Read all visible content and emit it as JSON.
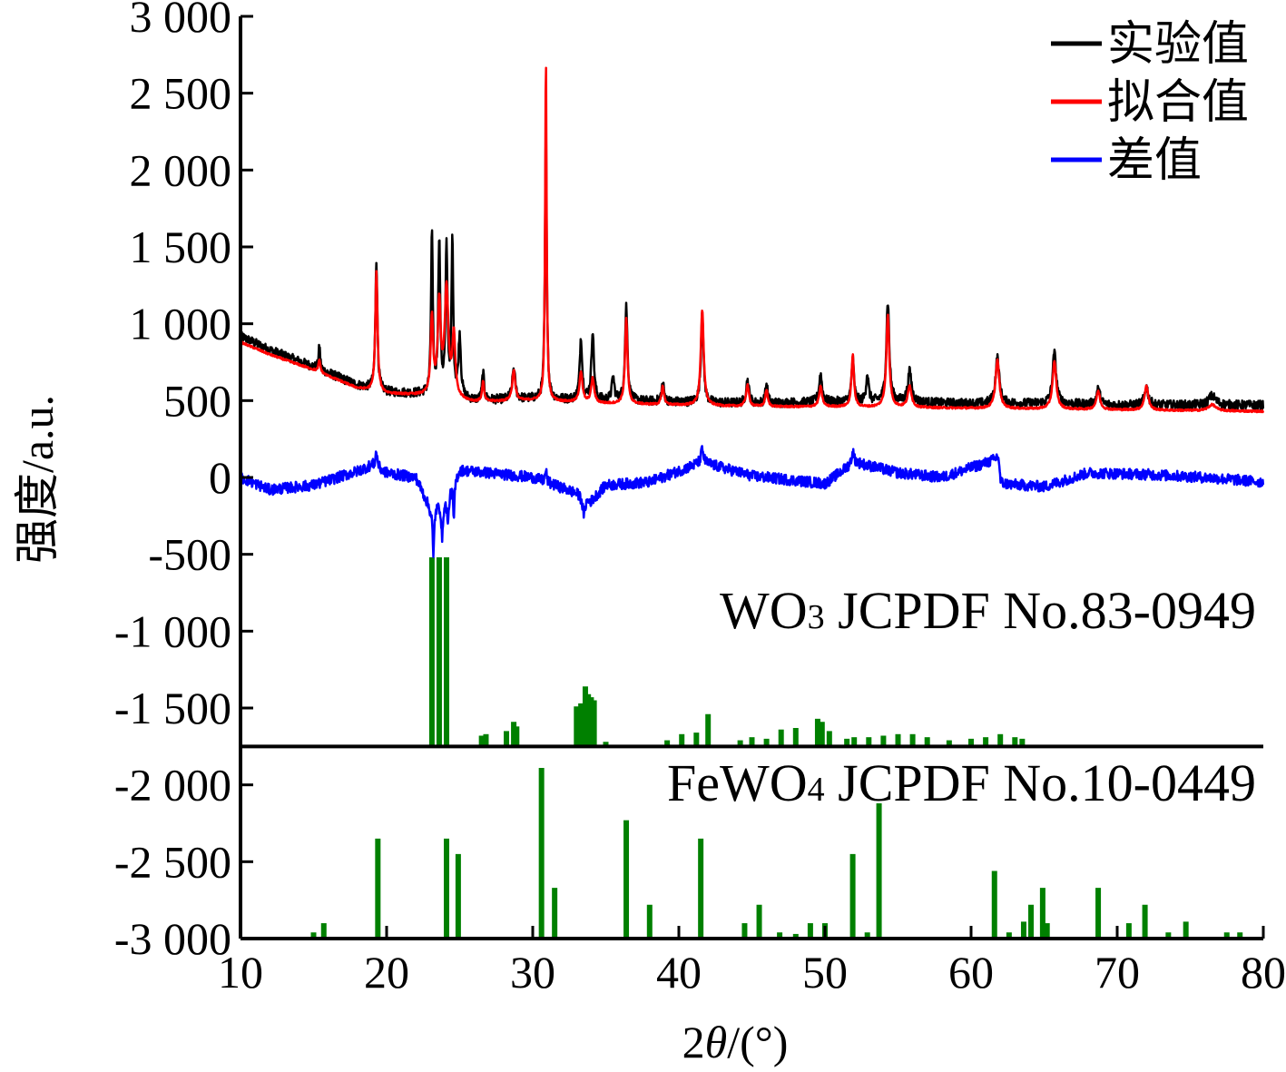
{
  "chart_data": {
    "type": "line",
    "xlabel_prefix": "2",
    "xlabel_var": "θ",
    "xlabel_suffix": "/(°)",
    "ylabel": "强度/a.u.",
    "xlim": [
      10,
      80
    ],
    "ylim": [
      -3000,
      3000
    ],
    "x_ticks": [
      10,
      20,
      30,
      40,
      50,
      60,
      70,
      80
    ],
    "x_tick_labels": [
      "10",
      "20",
      "30",
      "40",
      "50",
      "60",
      "70",
      "80"
    ],
    "y_ticks": [
      3000,
      2500,
      2000,
      1500,
      1000,
      500,
      0,
      -500,
      -1000,
      -1500,
      -2000,
      -2500,
      -3000
    ],
    "y_tick_labels": [
      "3 000",
      "2 500",
      "2 000",
      "1 500",
      "1 000",
      "500",
      "0",
      "-500",
      "-1 000",
      "-1 500",
      "-2 000",
      "-2 500",
      "-3 000"
    ],
    "legend_position": "top-right",
    "series": [
      {
        "name": "实验值",
        "color": "#000000",
        "baseline": [
          [
            10,
            920
          ],
          [
            12,
            830
          ],
          [
            15,
            720
          ],
          [
            18,
            600
          ],
          [
            20,
            555
          ],
          [
            23,
            540
          ],
          [
            26,
            500
          ],
          [
            30,
            510
          ],
          [
            35,
            500
          ],
          [
            40,
            490
          ],
          [
            45,
            480
          ],
          [
            50,
            490
          ],
          [
            55,
            490
          ],
          [
            60,
            480
          ],
          [
            65,
            480
          ],
          [
            70,
            470
          ],
          [
            75,
            470
          ],
          [
            80,
            470
          ]
        ],
        "peaks": [
          [
            15.4,
            160,
            0.06
          ],
          [
            19.3,
            850,
            0.08
          ],
          [
            23.1,
            1050,
            0.07
          ],
          [
            23.6,
            1000,
            0.08
          ],
          [
            24.1,
            950,
            0.08
          ],
          [
            24.5,
            1000,
            0.07
          ],
          [
            25.0,
            400,
            0.1
          ],
          [
            26.6,
            180,
            0.08
          ],
          [
            28.7,
            200,
            0.12
          ],
          [
            30.9,
            1750,
            0.07
          ],
          [
            33.3,
            400,
            0.1
          ],
          [
            34.1,
            450,
            0.1
          ],
          [
            35.5,
            150,
            0.1
          ],
          [
            36.4,
            620,
            0.1
          ],
          [
            38.9,
            120,
            0.1
          ],
          [
            41.6,
            600,
            0.1
          ],
          [
            44.7,
            150,
            0.12
          ],
          [
            46.0,
            120,
            0.1
          ],
          [
            49.7,
            180,
            0.12
          ],
          [
            51.9,
            280,
            0.1
          ],
          [
            52.9,
            180,
            0.1
          ],
          [
            54.3,
            650,
            0.12
          ],
          [
            55.8,
            200,
            0.15
          ],
          [
            61.8,
            300,
            0.15
          ],
          [
            65.7,
            330,
            0.15
          ],
          [
            68.7,
            100,
            0.15
          ],
          [
            72.0,
            120,
            0.15
          ],
          [
            76.5,
            60,
            0.3
          ]
        ],
        "noise": 30
      },
      {
        "name": "拟合值",
        "color": "#ff0000",
        "baseline": [
          [
            10,
            880
          ],
          [
            12,
            800
          ],
          [
            15,
            700
          ],
          [
            18,
            580
          ],
          [
            20,
            545
          ],
          [
            23,
            530
          ],
          [
            26,
            490
          ],
          [
            30,
            500
          ],
          [
            35,
            480
          ],
          [
            40,
            470
          ],
          [
            45,
            460
          ],
          [
            50,
            460
          ],
          [
            55,
            455
          ],
          [
            60,
            450
          ],
          [
            65,
            445
          ],
          [
            70,
            440
          ],
          [
            75,
            435
          ],
          [
            80,
            430
          ]
        ],
        "peaks": [
          [
            15.4,
            80,
            0.08
          ],
          [
            19.3,
            780,
            0.09
          ],
          [
            23.1,
            500,
            0.1
          ],
          [
            23.6,
            600,
            0.12
          ],
          [
            24.1,
            700,
            0.15
          ],
          [
            24.6,
            400,
            0.12
          ],
          [
            26.6,
            130,
            0.08
          ],
          [
            28.7,
            200,
            0.12
          ],
          [
            30.9,
            2230,
            0.06
          ],
          [
            33.3,
            200,
            0.12
          ],
          [
            34.1,
            160,
            0.12
          ],
          [
            36.4,
            560,
            0.1
          ],
          [
            38.9,
            120,
            0.1
          ],
          [
            41.6,
            620,
            0.12
          ],
          [
            44.7,
            140,
            0.12
          ],
          [
            46.0,
            110,
            0.1
          ],
          [
            49.7,
            130,
            0.12
          ],
          [
            51.9,
            340,
            0.1
          ],
          [
            54.3,
            600,
            0.12
          ],
          [
            55.8,
            140,
            0.15
          ],
          [
            61.8,
            320,
            0.15
          ],
          [
            65.7,
            310,
            0.15
          ],
          [
            68.7,
            120,
            0.15
          ],
          [
            72.0,
            160,
            0.15
          ],
          [
            76.5,
            40,
            0.3
          ]
        ],
        "noise": 6
      },
      {
        "name": "差值",
        "color": "#0000ff",
        "baseline": [
          [
            10,
            0
          ],
          [
            12,
            -80
          ],
          [
            15,
            -50
          ],
          [
            18,
            40
          ],
          [
            19,
            80
          ],
          [
            20,
            30
          ],
          [
            22,
            0
          ],
          [
            23,
            -200
          ],
          [
            24,
            -150
          ],
          [
            25,
            50
          ],
          [
            28,
            20
          ],
          [
            30,
            0
          ],
          [
            33,
            -100
          ],
          [
            34,
            -150
          ],
          [
            35,
            -50
          ],
          [
            38,
            -30
          ],
          [
            41.6,
            100
          ],
          [
            45,
            10
          ],
          [
            50,
            -40
          ],
          [
            52,
            100
          ],
          [
            55,
            30
          ],
          [
            58,
            0
          ],
          [
            61.8,
            120
          ],
          [
            62,
            -40
          ],
          [
            65,
            -60
          ],
          [
            68,
            30
          ],
          [
            72,
            20
          ],
          [
            76,
            0
          ],
          [
            80,
            -30
          ]
        ],
        "peaks": [
          [
            19.3,
            100,
            0.08
          ],
          [
            23.2,
            -330,
            0.06
          ],
          [
            23.8,
            -250,
            0.06
          ],
          [
            24.2,
            -200,
            0.06
          ],
          [
            24.6,
            -250,
            0.05
          ],
          [
            30.9,
            80,
            0.06
          ],
          [
            33.5,
            -120,
            0.1
          ],
          [
            41.6,
            80,
            0.1
          ],
          [
            51.9,
            70,
            0.1
          ],
          [
            61.9,
            70,
            0.08
          ]
        ],
        "noise": 35
      }
    ],
    "reference_patterns": [
      {
        "label_prefix": "WO",
        "label_sub": "3",
        "label_suffix": " JCPDF No.83-0949",
        "color": "#008000",
        "baseline_y": -1750,
        "line_x_range": [
          10,
          80
        ],
        "sticks": [
          [
            23.1,
            1230
          ],
          [
            23.6,
            1230
          ],
          [
            24.1,
            1230
          ],
          [
            26.5,
            70
          ],
          [
            26.8,
            80
          ],
          [
            28.2,
            100
          ],
          [
            28.7,
            160
          ],
          [
            28.9,
            130
          ],
          [
            33.0,
            260
          ],
          [
            33.3,
            280
          ],
          [
            33.6,
            390
          ],
          [
            33.8,
            340
          ],
          [
            34.0,
            320
          ],
          [
            34.2,
            300
          ],
          [
            35.0,
            30
          ],
          [
            39.2,
            40
          ],
          [
            40.2,
            80
          ],
          [
            41.2,
            90
          ],
          [
            42.0,
            210
          ],
          [
            44.2,
            40
          ],
          [
            45.0,
            60
          ],
          [
            46.0,
            50
          ],
          [
            47.0,
            110
          ],
          [
            48.0,
            120
          ],
          [
            49.5,
            180
          ],
          [
            49.8,
            160
          ],
          [
            50.3,
            100
          ],
          [
            51.5,
            50
          ],
          [
            52.0,
            60
          ],
          [
            53.0,
            60
          ],
          [
            54.0,
            70
          ],
          [
            55.0,
            80
          ],
          [
            56.0,
            80
          ],
          [
            57.0,
            60
          ],
          [
            58.5,
            40
          ],
          [
            60.0,
            50
          ],
          [
            61.0,
            60
          ],
          [
            62.0,
            80
          ],
          [
            63.0,
            60
          ],
          [
            63.5,
            50
          ]
        ]
      },
      {
        "label_prefix": "FeWO",
        "label_sub": "4",
        "label_suffix": " JCPDF No.10-0449",
        "color": "#008000",
        "baseline_y": -3000,
        "line_x_range": [
          10,
          80
        ],
        "sticks": [
          [
            15.0,
            40
          ],
          [
            15.7,
            100
          ],
          [
            19.4,
            650
          ],
          [
            24.1,
            650
          ],
          [
            24.9,
            550
          ],
          [
            30.6,
            1110
          ],
          [
            31.5,
            330
          ],
          [
            36.4,
            770
          ],
          [
            38.0,
            220
          ],
          [
            41.5,
            650
          ],
          [
            44.5,
            100
          ],
          [
            45.5,
            220
          ],
          [
            46.9,
            40
          ],
          [
            48.0,
            30
          ],
          [
            49.0,
            100
          ],
          [
            50.0,
            100
          ],
          [
            51.9,
            550
          ],
          [
            52.9,
            40
          ],
          [
            53.7,
            880
          ],
          [
            61.6,
            440
          ],
          [
            62.6,
            40
          ],
          [
            63.6,
            110
          ],
          [
            64.1,
            220
          ],
          [
            64.9,
            330
          ],
          [
            65.2,
            100
          ],
          [
            68.7,
            330
          ],
          [
            70.8,
            100
          ],
          [
            71.9,
            220
          ],
          [
            73.5,
            40
          ],
          [
            74.7,
            110
          ],
          [
            77.5,
            40
          ],
          [
            78.4,
            40
          ]
        ]
      }
    ]
  }
}
